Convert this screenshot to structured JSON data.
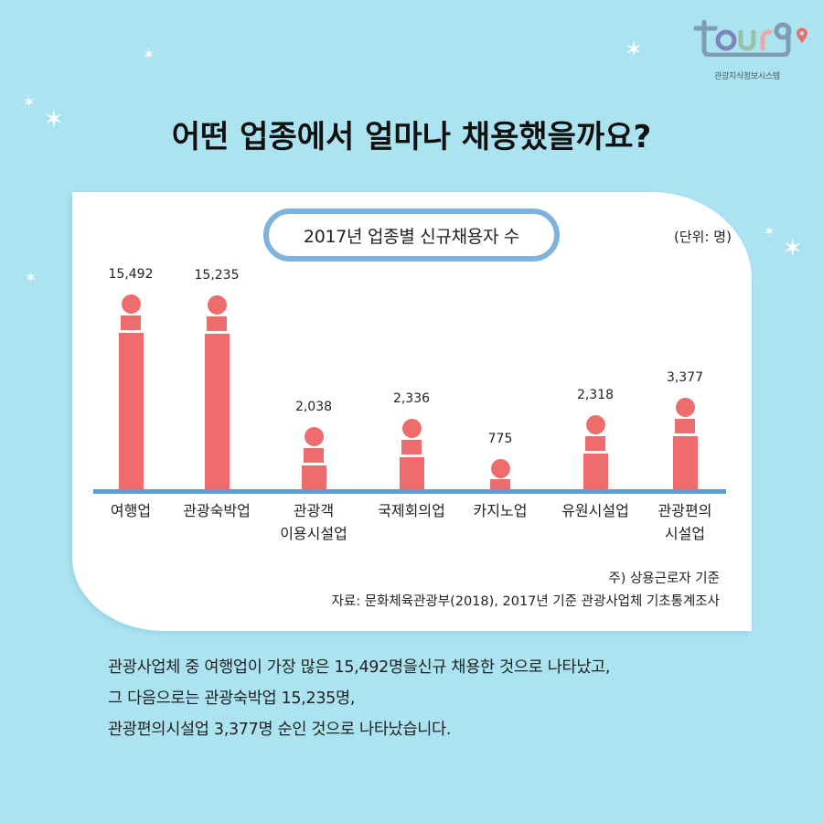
{
  "logo": {
    "wordmark": "tourg",
    "subtitle": "관광지식정보시스템",
    "colors": {
      "frame": "#7E9DAE",
      "o": "#7D86BC",
      "u": "#93C2A5",
      "r": "#E9A9AB",
      "pin": "#EF6C6D"
    }
  },
  "headline": "어떤 업종에서 얼마나 채용했을까요?",
  "chart": {
    "title": "2017년 업종별 신규채용자 수",
    "unit": "(단위: 명)",
    "note": "주) 상용근로자 기준",
    "source": "자료: 문화체육관광부(2018), 2017년 기준 관광사업체 기초통계조사"
  },
  "chart_data": {
    "type": "bar",
    "title": "2017년 업종별 신규채용자 수",
    "unit": "명",
    "categories": [
      "여행업",
      "관광숙박업",
      "관광객 이용시설업",
      "국제회의업",
      "카지노업",
      "유원시설업",
      "관광편의 시설업"
    ],
    "category_lines": [
      [
        "여행업"
      ],
      [
        "관광숙박업"
      ],
      [
        "관광객",
        "이용시설업"
      ],
      [
        "국제회의업"
      ],
      [
        "카지노업"
      ],
      [
        "유원시설업"
      ],
      [
        "관광편의",
        "시설업"
      ]
    ],
    "values": [
      15492,
      15235,
      2038,
      2336,
      775,
      2318,
      3377
    ],
    "value_labels": [
      "15,492",
      "15,235",
      "2,038",
      "2,336",
      "775",
      "2,318",
      "3,377"
    ],
    "xlabel": "",
    "ylabel": "",
    "grid": false,
    "legend": "none",
    "bar_color": "#EF6C6D",
    "axis_color": "#5B9FD0"
  },
  "summary": {
    "lines": [
      "관광사업체 중 여행업이 가장 많은 15,492명을신규 채용한 것으로 나타났고,",
      "그 다음으로는 관광숙박업 15,235명,",
      "관광편의시설업 3,377명 순인 것으로 나타났습니다."
    ]
  },
  "colors": {
    "background": "#ABE3F1",
    "card": "#FFFFFF",
    "pill_border": "#7FB3DC"
  }
}
